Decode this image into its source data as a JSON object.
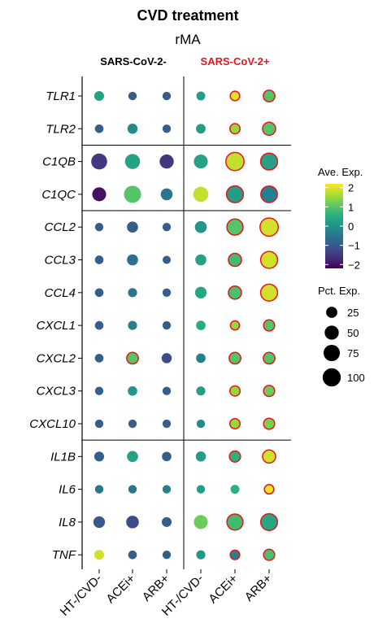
{
  "chart_data": {
    "type": "dotplot",
    "title": "CVD treatment",
    "subtitle": "rMA",
    "groups": [
      {
        "label": "SARS-CoV-2-",
        "color": "#000000"
      },
      {
        "label": "SARS-CoV-2+",
        "color": "#e8141c"
      }
    ],
    "x_categories": [
      "HT-/CVD-",
      "ACEi+",
      "ARB+",
      "HT-/CVD-",
      "ACEi+",
      "ARB+"
    ],
    "genes": [
      "TLR1",
      "TLR2",
      "C1QB",
      "C1QC",
      "CCL2",
      "CCL3",
      "CCL4",
      "CXCL1",
      "CXCL2",
      "CXCL3",
      "CXCL10",
      "IL1B",
      "IL6",
      "IL8",
      "TNF"
    ],
    "gene_blocks": [
      [
        0,
        1
      ],
      [
        2,
        3
      ],
      [
        4,
        10
      ],
      [
        11,
        14
      ]
    ],
    "color_legend": {
      "title": "Ave. Exp.",
      "ticks": [
        2,
        1,
        0,
        -1,
        -2
      ],
      "range": [
        -2.2,
        2.2
      ]
    },
    "size_legend": {
      "title": "Pct. Exp.",
      "values": [
        25,
        50,
        75,
        100
      ]
    },
    "values": [
      [
        {
          "avg": 0.3,
          "pct": 16
        },
        {
          "avg": -0.9,
          "pct": 9
        },
        {
          "avg": -0.9,
          "pct": 9
        },
        {
          "avg": 0.2,
          "pct": 11
        },
        {
          "avg": 2.0,
          "pct": 14,
          "hl": true
        },
        {
          "avg": 1.0,
          "pct": 28,
          "hl": true
        }
      ],
      [
        {
          "avg": -0.9,
          "pct": 10
        },
        {
          "avg": -0.1,
          "pct": 18
        },
        {
          "avg": -0.9,
          "pct": 9
        },
        {
          "avg": 0.2,
          "pct": 15
        },
        {
          "avg": 1.5,
          "pct": 18,
          "hl": true
        },
        {
          "avg": 1.0,
          "pct": 40,
          "hl": true
        }
      ],
      [
        {
          "avg": -1.5,
          "pct": 70
        },
        {
          "avg": 0.3,
          "pct": 60
        },
        {
          "avg": -1.5,
          "pct": 50
        },
        {
          "avg": 0.3,
          "pct": 48
        },
        {
          "avg": 1.8,
          "pct": 100,
          "hl": true
        },
        {
          "avg": 0.3,
          "pct": 82,
          "hl": true
        }
      ],
      [
        {
          "avg": -2.0,
          "pct": 48
        },
        {
          "avg": 1.0,
          "pct": 85
        },
        {
          "avg": -0.5,
          "pct": 30
        },
        {
          "avg": 1.8,
          "pct": 60
        },
        {
          "avg": 0.2,
          "pct": 82,
          "hl": true
        },
        {
          "avg": -0.3,
          "pct": 78,
          "hl": true
        }
      ],
      [
        {
          "avg": -0.9,
          "pct": 9
        },
        {
          "avg": -0.9,
          "pct": 24
        },
        {
          "avg": -0.9,
          "pct": 9
        },
        {
          "avg": 0.1,
          "pct": 30
        },
        {
          "avg": 1.0,
          "pct": 72,
          "hl": true
        },
        {
          "avg": 1.9,
          "pct": 100,
          "hl": true
        }
      ],
      [
        {
          "avg": -0.9,
          "pct": 10
        },
        {
          "avg": -0.6,
          "pct": 24
        },
        {
          "avg": -0.9,
          "pct": 8
        },
        {
          "avg": 0.3,
          "pct": 24
        },
        {
          "avg": 0.8,
          "pct": 40,
          "hl": true
        },
        {
          "avg": 1.9,
          "pct": 82,
          "hl": true
        }
      ],
      [
        {
          "avg": -0.9,
          "pct": 10
        },
        {
          "avg": -0.5,
          "pct": 12
        },
        {
          "avg": -0.9,
          "pct": 9
        },
        {
          "avg": 0.4,
          "pct": 28
        },
        {
          "avg": 0.9,
          "pct": 40,
          "hl": true
        },
        {
          "avg": 1.9,
          "pct": 82,
          "hl": true
        }
      ],
      [
        {
          "avg": -0.9,
          "pct": 10
        },
        {
          "avg": -0.3,
          "pct": 12
        },
        {
          "avg": -0.9,
          "pct": 9
        },
        {
          "avg": 0.5,
          "pct": 14
        },
        {
          "avg": 1.5,
          "pct": 12,
          "hl": true
        },
        {
          "avg": 1.0,
          "pct": 24,
          "hl": true
        }
      ],
      [
        {
          "avg": -0.9,
          "pct": 10
        },
        {
          "avg": 1.0,
          "pct": 28,
          "hl": true
        },
        {
          "avg": -1.2,
          "pct": 18
        },
        {
          "avg": -0.3,
          "pct": 14
        },
        {
          "avg": 1.0,
          "pct": 28,
          "hl": true
        },
        {
          "avg": 1.0,
          "pct": 28,
          "hl": true
        }
      ],
      [
        {
          "avg": -0.9,
          "pct": 9
        },
        {
          "avg": 0.1,
          "pct": 14
        },
        {
          "avg": -0.9,
          "pct": 9
        },
        {
          "avg": 0.2,
          "pct": 12
        },
        {
          "avg": 1.5,
          "pct": 18,
          "hl": true
        },
        {
          "avg": 1.2,
          "pct": 24,
          "hl": true
        }
      ],
      [
        {
          "avg": -0.9,
          "pct": 9
        },
        {
          "avg": -0.9,
          "pct": 9
        },
        {
          "avg": -0.9,
          "pct": 9
        },
        {
          "avg": -0.1,
          "pct": 9
        },
        {
          "avg": 1.5,
          "pct": 18,
          "hl": true
        },
        {
          "avg": 1.3,
          "pct": 24,
          "hl": true
        }
      ],
      [
        {
          "avg": -0.9,
          "pct": 16
        },
        {
          "avg": 0.3,
          "pct": 24
        },
        {
          "avg": -0.9,
          "pct": 14
        },
        {
          "avg": 0.2,
          "pct": 18
        },
        {
          "avg": 0.6,
          "pct": 24,
          "hl": true
        },
        {
          "avg": 1.9,
          "pct": 40,
          "hl": true
        }
      ],
      [
        {
          "avg": -0.5,
          "pct": 9
        },
        {
          "avg": -0.5,
          "pct": 9
        },
        {
          "avg": -0.3,
          "pct": 9
        },
        {
          "avg": 0.2,
          "pct": 9
        },
        {
          "avg": 0.6,
          "pct": 11
        },
        {
          "avg": 2.1,
          "pct": 14,
          "hl": true
        }
      ],
      [
        {
          "avg": -1.0,
          "pct": 28
        },
        {
          "avg": -1.2,
          "pct": 36
        },
        {
          "avg": -0.9,
          "pct": 16
        },
        {
          "avg": 1.2,
          "pct": 48
        },
        {
          "avg": 0.8,
          "pct": 72,
          "hl": true
        },
        {
          "avg": 0.4,
          "pct": 80,
          "hl": true
        }
      ],
      [
        {
          "avg": 1.9,
          "pct": 16
        },
        {
          "avg": -0.9,
          "pct": 10
        },
        {
          "avg": -0.9,
          "pct": 9
        },
        {
          "avg": 0.1,
          "pct": 12
        },
        {
          "avg": -0.3,
          "pct": 14,
          "hl": true
        },
        {
          "avg": 0.9,
          "pct": 24,
          "hl": true
        }
      ]
    ]
  }
}
